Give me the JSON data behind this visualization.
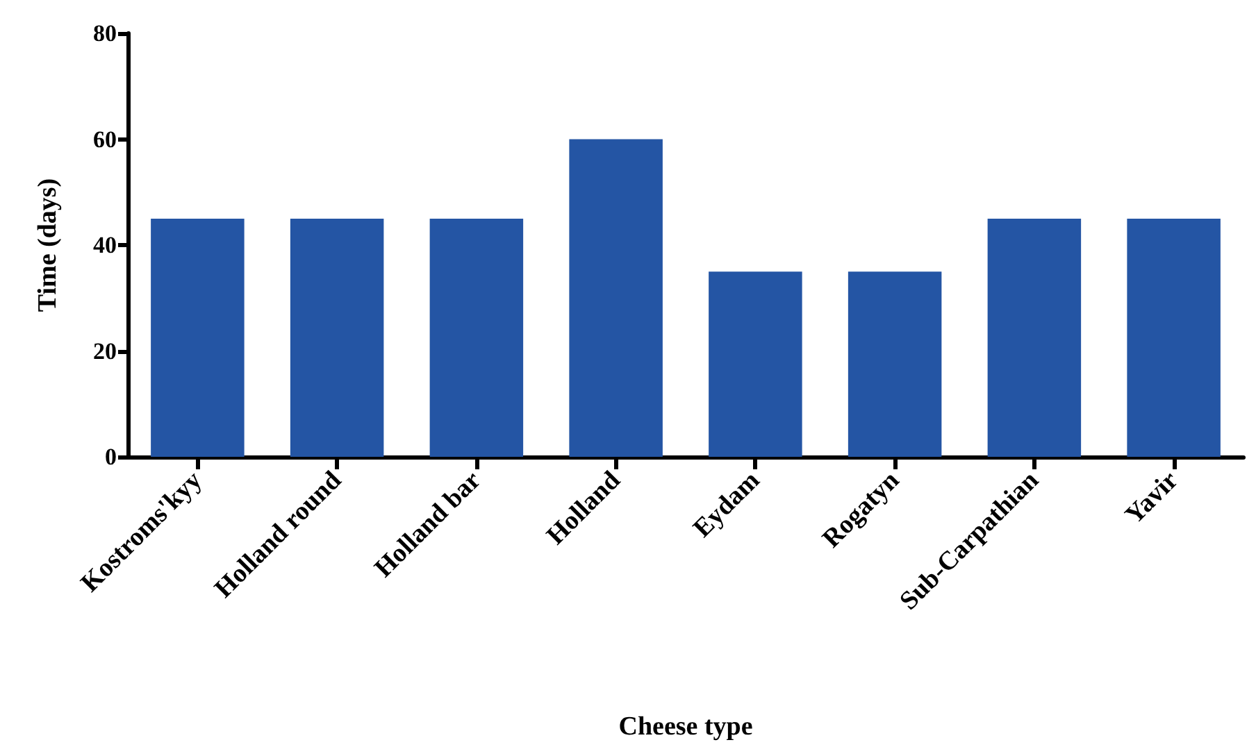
{
  "chart_data": {
    "type": "bar",
    "xlabel": "Cheese type",
    "ylabel": "Time (days)",
    "categories": [
      "Kostroms'kyy",
      "Holland round",
      "Holland bar",
      "Holland",
      "Eydam",
      "Rogatyn",
      "Sub-Carpathian",
      "Yavir"
    ],
    "values": [
      45,
      45,
      45,
      60,
      35,
      35,
      45,
      45
    ],
    "color": "#2455a4",
    "ylim": [
      0,
      80
    ],
    "yticks": [
      0,
      20,
      40,
      60,
      80
    ],
    "grid": false
  }
}
